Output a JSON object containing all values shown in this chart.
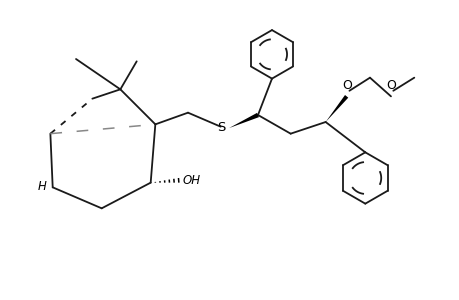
{
  "bg_color": "#ffffff",
  "line_color": "#1a1a1a",
  "lw": 1.3,
  "figsize": [
    4.6,
    3.0
  ],
  "dpi": 100,
  "xlim": [
    -0.3,
    9.2
  ],
  "ylim": [
    -0.2,
    6.2
  ]
}
